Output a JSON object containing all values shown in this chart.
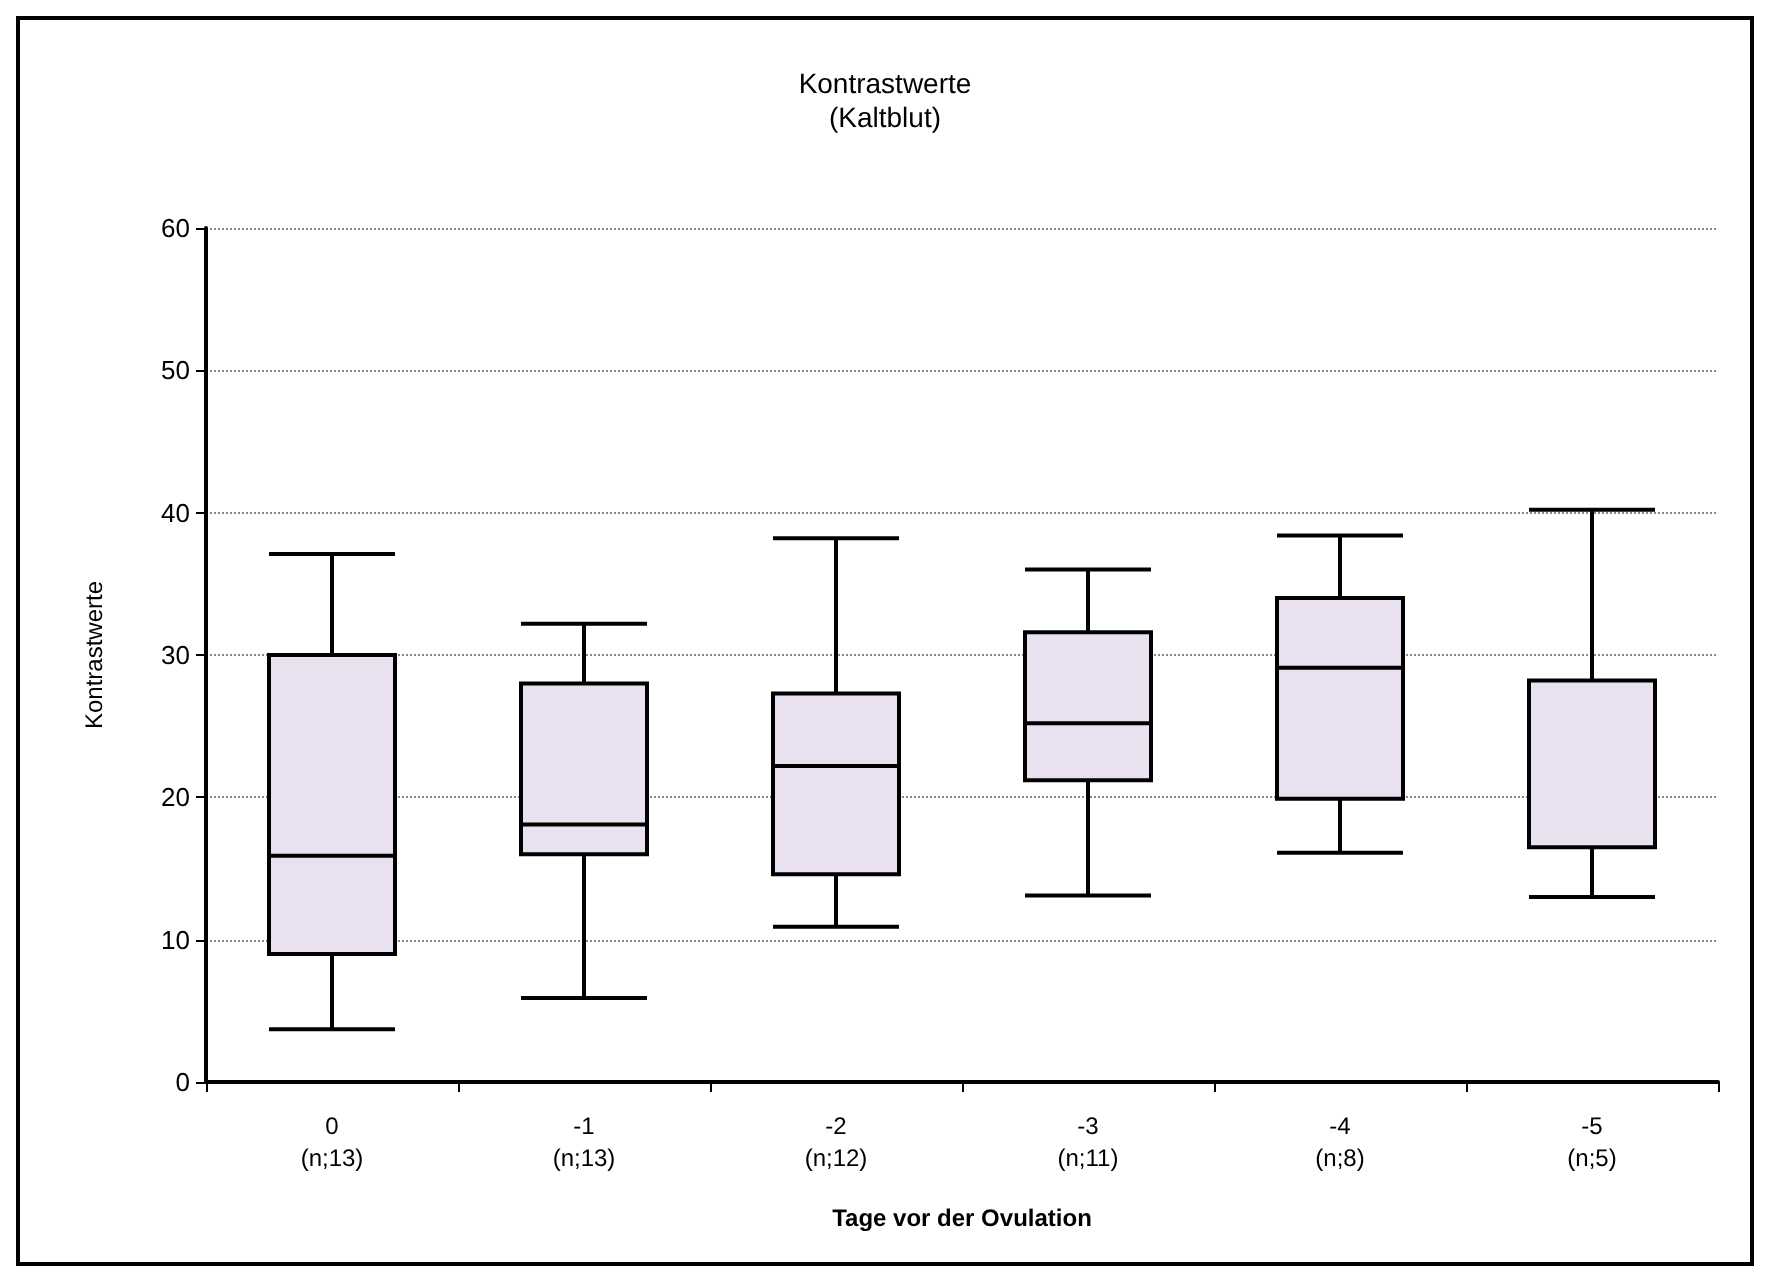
{
  "chart_data": {
    "type": "box",
    "title": "Kontrastwerte\n(Kaltblut)",
    "xlabel": "Tage vor der Ovulation",
    "ylabel": "Kontrastwerte",
    "categories": [
      "0\n(n;13)",
      "-1\n(n;13)",
      "-2\n(n;12)",
      "-3\n(n;11)",
      "-4\n(n;8)",
      "-5\n(n;5)"
    ],
    "color": "#e9e1f0",
    "boxes": [
      {
        "low": 3.7,
        "q1": 9.0,
        "median": 15.9,
        "q3": 30.0,
        "high": 37.1
      },
      {
        "low": 5.9,
        "q1": 16.0,
        "median": 18.1,
        "q3": 28.0,
        "high": 32.2
      },
      {
        "low": 10.9,
        "q1": 14.6,
        "median": 22.2,
        "q3": 27.3,
        "high": 38.2
      },
      {
        "low": 13.1,
        "q1": 21.2,
        "median": 25.2,
        "q3": 31.6,
        "high": 36.0
      },
      {
        "low": 16.1,
        "q1": 19.9,
        "median": 29.1,
        "q3": 34.0,
        "high": 38.4
      },
      {
        "low": 13.0,
        "q1": 16.5,
        "median": 16.5,
        "q3": 28.2,
        "high": 40.2
      }
    ],
    "ylim": [
      0,
      60
    ],
    "yticks": [
      0,
      10,
      20,
      30,
      40,
      50,
      60
    ],
    "grid": "y"
  }
}
